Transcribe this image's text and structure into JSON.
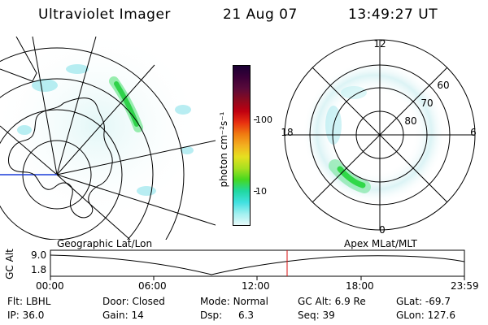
{
  "header": {
    "instrument": "Ultraviolet Imager",
    "date": "21 Aug 07",
    "time": "13:49:27 UT"
  },
  "colorbar": {
    "label": "photon cm⁻²s⁻¹",
    "ticks": [
      "100",
      "10"
    ],
    "colors": [
      "#1a0033",
      "#3b0038",
      "#5a0a3a",
      "#8a0a20",
      "#c00010",
      "#e83010",
      "#f07a10",
      "#f3b020",
      "#e6e020",
      "#a8e020",
      "#46d820",
      "#20d8a0",
      "#40e0e0",
      "#a0f0f0",
      "#e8fafa"
    ]
  },
  "polar_plot": {
    "mlt_labels": [
      "12",
      "18",
      "6",
      "0"
    ],
    "mlat_labels": [
      "60",
      "70",
      "80"
    ]
  },
  "timeline": {
    "axis_title": "GC Alt",
    "left_label": "Geographic Lat/Lon",
    "right_label": "Apex  MLat/MLT",
    "y_ticks": [
      "9.0",
      "1.8"
    ],
    "x_ticks": [
      "00:00",
      "06:00",
      "12:00",
      "18:00",
      "23:59"
    ],
    "current_marker_time": "13:49:27"
  },
  "status": {
    "row1": [
      {
        "label": "Flt:",
        "value": "LBHL"
      },
      {
        "label": "Door:",
        "value": "Closed"
      },
      {
        "label": "Mode:",
        "value": "Normal"
      },
      {
        "label": "GC Alt:",
        "value": "6.9 Re"
      },
      {
        "label": "GLat:",
        "value": "-69.7"
      }
    ],
    "row2": [
      {
        "label": "IP:",
        "value": "36.0"
      },
      {
        "label": "Gain:",
        "value": "14"
      },
      {
        "label": "Dsp:",
        "value": "6.3"
      },
      {
        "label": "Seq:",
        "value": "39"
      },
      {
        "label": "GLon:",
        "value": "127.6"
      }
    ]
  }
}
